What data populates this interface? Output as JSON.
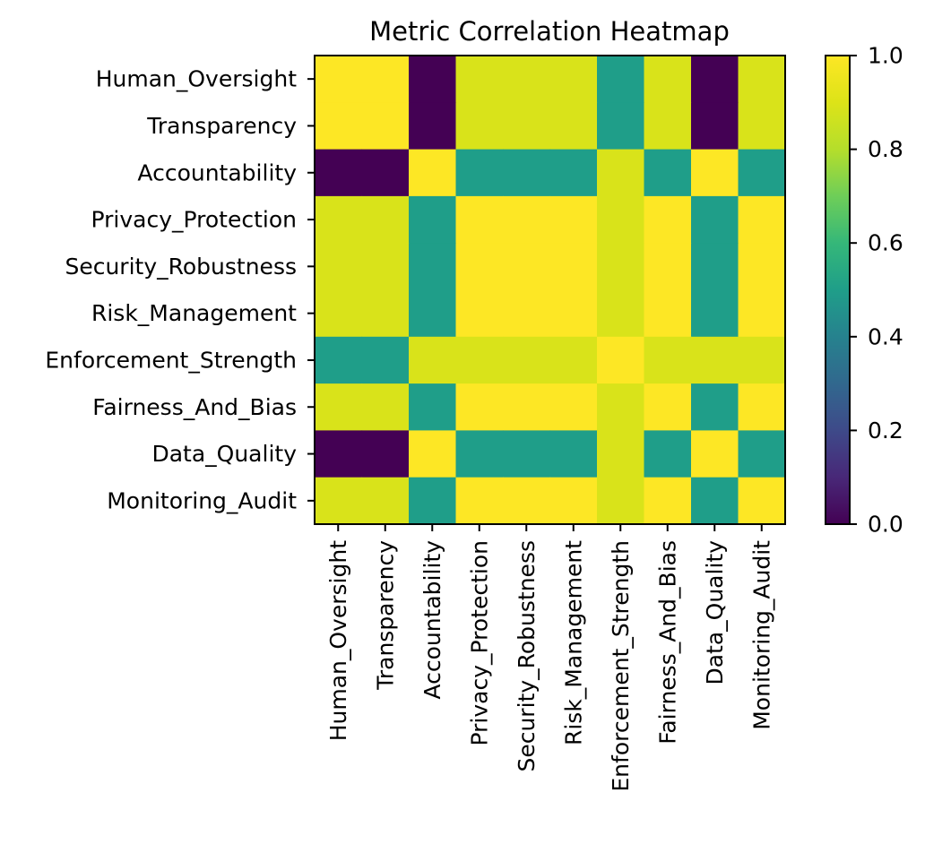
{
  "chart_data": {
    "type": "heatmap",
    "title": "Metric Correlation Heatmap",
    "xlabel": "",
    "ylabel": "",
    "x_categories": [
      "Human_Oversight",
      "Transparency",
      "Accountability",
      "Privacy_Protection",
      "Security_Robustness",
      "Risk_Management",
      "Enforcement_Strength",
      "Fairness_And_Bias",
      "Data_Quality",
      "Monitoring_Audit"
    ],
    "y_categories": [
      "Human_Oversight",
      "Transparency",
      "Accountability",
      "Privacy_Protection",
      "Security_Robustness",
      "Risk_Management",
      "Enforcement_Strength",
      "Fairness_And_Bias",
      "Data_Quality",
      "Monitoring_Audit"
    ],
    "values": [
      [
        1.0,
        1.0,
        0.0,
        0.89,
        0.89,
        0.89,
        0.5,
        0.89,
        0.0,
        0.89
      ],
      [
        1.0,
        1.0,
        0.0,
        0.89,
        0.89,
        0.89,
        0.5,
        0.89,
        0.0,
        0.89
      ],
      [
        0.0,
        0.0,
        1.0,
        0.5,
        0.5,
        0.5,
        0.89,
        0.5,
        1.0,
        0.5
      ],
      [
        0.89,
        0.89,
        0.5,
        1.0,
        1.0,
        1.0,
        0.89,
        1.0,
        0.5,
        1.0
      ],
      [
        0.89,
        0.89,
        0.5,
        1.0,
        1.0,
        1.0,
        0.89,
        1.0,
        0.5,
        1.0
      ],
      [
        0.89,
        0.89,
        0.5,
        1.0,
        1.0,
        1.0,
        0.89,
        1.0,
        0.5,
        1.0
      ],
      [
        0.5,
        0.5,
        0.89,
        0.89,
        0.89,
        0.89,
        1.0,
        0.89,
        0.89,
        0.89
      ],
      [
        0.89,
        0.89,
        0.5,
        1.0,
        1.0,
        1.0,
        0.89,
        1.0,
        0.5,
        1.0
      ],
      [
        0.0,
        0.0,
        1.0,
        0.5,
        0.5,
        0.5,
        0.89,
        0.5,
        1.0,
        0.5
      ],
      [
        0.89,
        0.89,
        0.5,
        1.0,
        1.0,
        1.0,
        0.89,
        1.0,
        0.5,
        1.0
      ]
    ],
    "colorbar": {
      "range": [
        0.0,
        1.0
      ],
      "ticks": [
        0.0,
        0.2,
        0.4,
        0.6,
        0.8,
        1.0
      ],
      "tick_labels": [
        "0.0",
        "0.2",
        "0.4",
        "0.6",
        "0.8",
        "1.0"
      ]
    },
    "colormap": "viridis",
    "grid": false
  }
}
